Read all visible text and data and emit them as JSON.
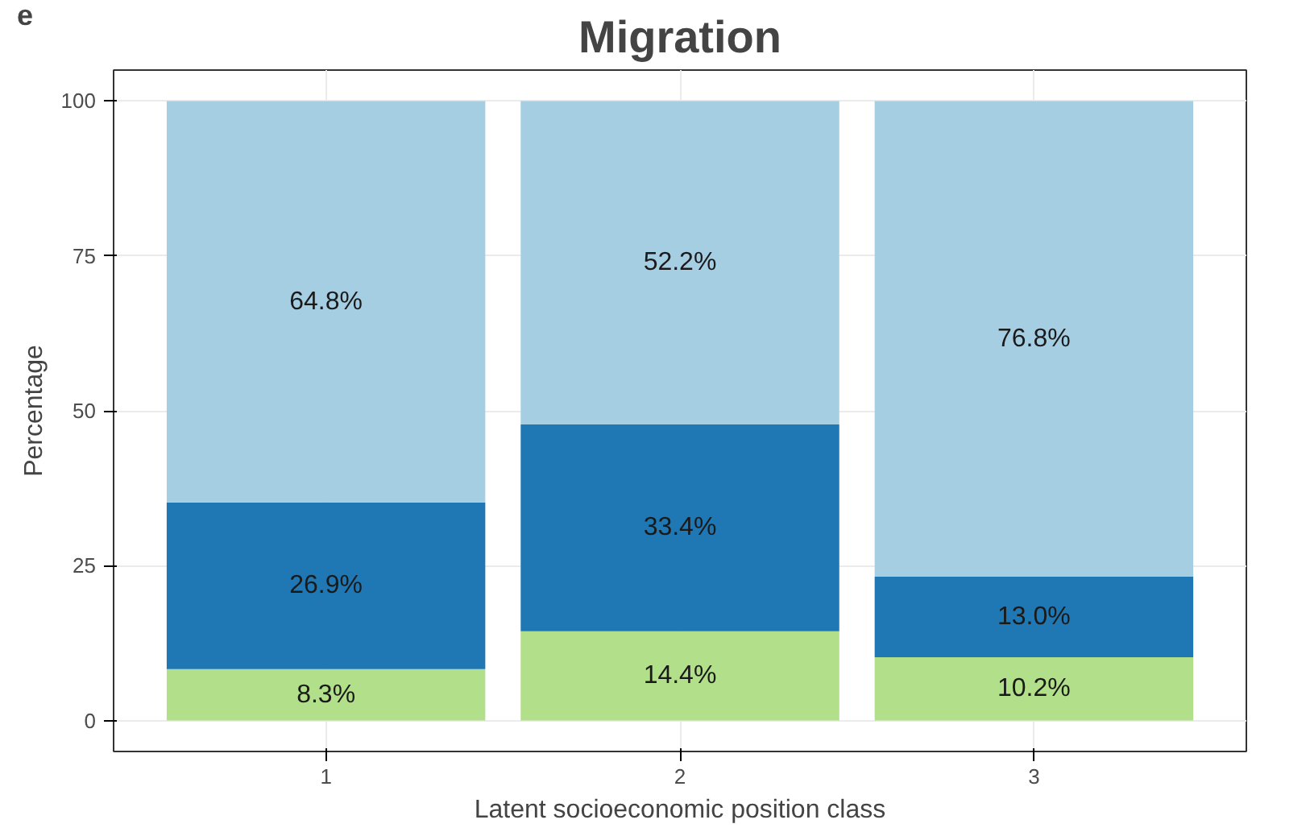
{
  "chart_data": {
    "type": "bar",
    "title": "Migration",
    "annotations": [
      "e"
    ],
    "xlabel": "Latent socioeconomic position class",
    "ylabel": "Percentage",
    "categories": [
      "1",
      "2",
      "3"
    ],
    "stacked": true,
    "ylim": [
      -5,
      105
    ],
    "yticks": [
      0,
      25,
      50,
      75,
      100
    ],
    "grid": true,
    "series": [
      {
        "color": "#b2df8a",
        "values": [
          8.3,
          14.4,
          10.2
        ],
        "value_labels": [
          "8.3%",
          "14.4%",
          "10.2%"
        ]
      },
      {
        "color": "#1f78b4",
        "values": [
          26.9,
          33.4,
          13.0
        ],
        "value_labels": [
          "26.9%",
          "33.4%",
          "13.0%"
        ]
      },
      {
        "color": "#a6cee3",
        "values": [
          64.8,
          52.2,
          76.8
        ],
        "value_labels": [
          "64.8%",
          "52.2%",
          "76.8%"
        ]
      }
    ]
  }
}
